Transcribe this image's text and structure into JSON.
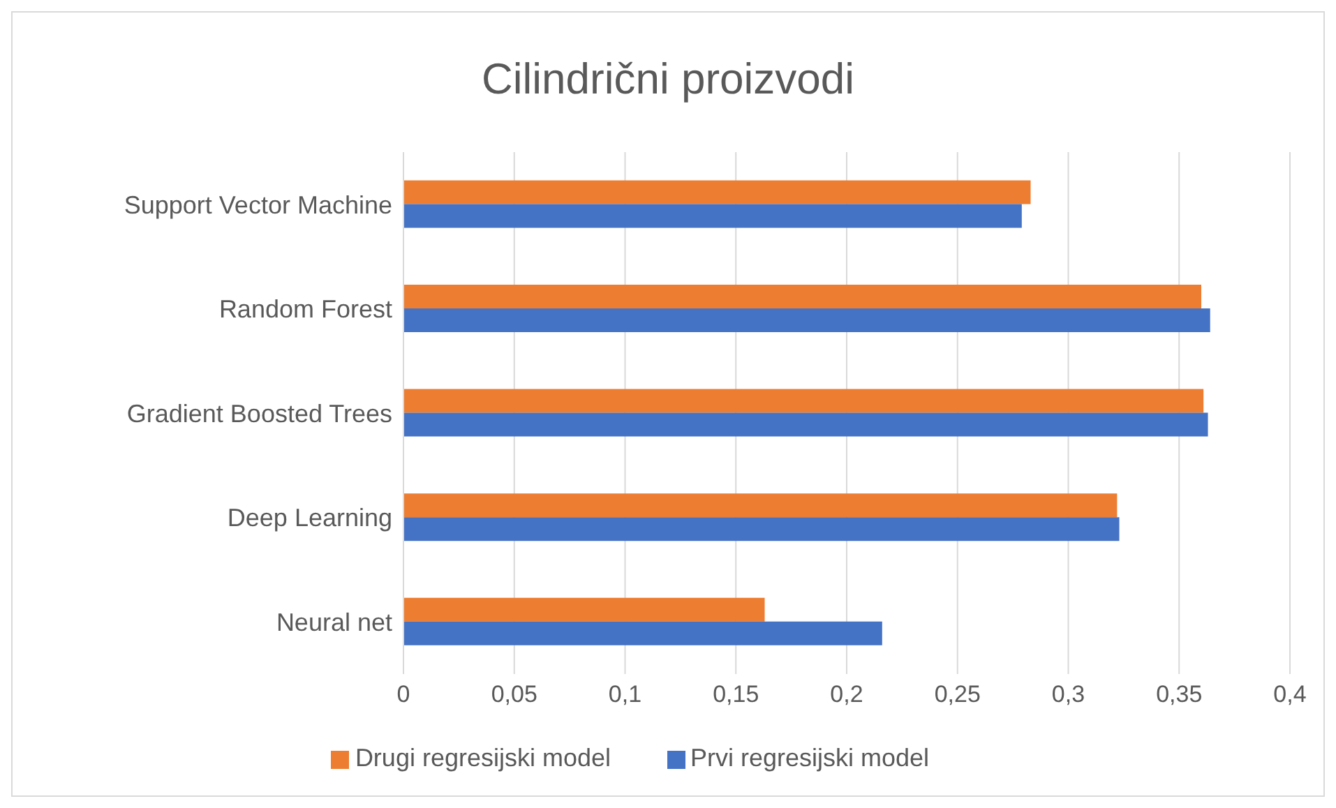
{
  "chart_data": {
    "type": "bar",
    "orientation": "horizontal",
    "title": "Cilindrični proizvodi",
    "categories": [
      "Support Vector Machine",
      "Random Forest",
      "Gradient Boosted Trees",
      "Deep Learning",
      "Neural net"
    ],
    "series": [
      {
        "name": "Drugi regresijski model",
        "color": "#ed7d31",
        "values": [
          0.283,
          0.36,
          0.361,
          0.322,
          0.163
        ]
      },
      {
        "name": "Prvi regresijski model",
        "color": "#4472c4",
        "values": [
          0.279,
          0.364,
          0.363,
          0.323,
          0.216
        ]
      }
    ],
    "xlim": [
      0,
      0.4
    ],
    "xticks": [
      0,
      {
        "value": 0.05,
        "label": "0,05"
      },
      {
        "value": 0.1,
        "label": "0,1"
      },
      {
        "value": 0.15,
        "label": "0,15"
      },
      {
        "value": 0.2,
        "label": "0,2"
      },
      {
        "value": 0.25,
        "label": "0,25"
      },
      {
        "value": 0.3,
        "label": "0,3"
      },
      {
        "value": 0.35,
        "label": "0,35"
      },
      {
        "value": 0.4,
        "label": "0,4"
      }
    ],
    "grid": "x",
    "legend": "bottom"
  }
}
